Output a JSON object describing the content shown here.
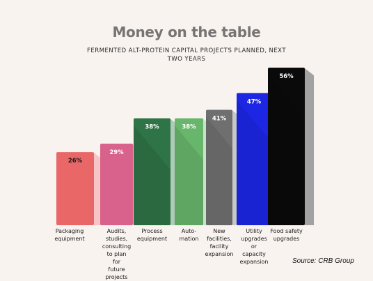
{
  "chart_data": {
    "type": "bar",
    "title": "Money on the table",
    "subtitle": "FERMENTED ALT-PROTEIN CAPITAL PROJECTS PLANNED, NEXT TWO YEARS",
    "categories": [
      "Packaging equipment",
      "Audits, studies, consulting to plan for future projects",
      "Process equipment",
      "Automation",
      "New facilities, facility expansion",
      "Utility upgrades or capacity expansion",
      "Food safety upgrades"
    ],
    "category_lines": [
      [
        "Packaging",
        "equipment"
      ],
      [
        "Audits,",
        "studies,",
        "consulting",
        "to plan",
        "for",
        "future",
        "projects"
      ],
      [
        "Process",
        "equipment"
      ],
      [
        "Auto-",
        "mation"
      ],
      [
        "New",
        "facilities,",
        "facility",
        "expansion"
      ],
      [
        "Utility",
        "upgrades",
        "or",
        "capacity",
        "expansion"
      ],
      [
        "Food safety",
        "upgrades"
      ]
    ],
    "values": [
      26,
      29,
      38,
      38,
      41,
      47,
      56
    ],
    "value_labels": [
      "26%",
      "29%",
      "38%",
      "38%",
      "41%",
      "47%",
      "56%"
    ],
    "colors": [
      "#ea6767",
      "#d8628b",
      "#2f7446",
      "#68b56c",
      "#6f6f6f",
      "#1d27e3",
      "#0a0a0a"
    ],
    "label_colors": [
      "#1a1a1a",
      "#ffffff",
      "#ffffff",
      "#ffffff",
      "#ffffff",
      "#ffffff",
      "#ffffff"
    ],
    "ylim": [
      0,
      56
    ],
    "grid": false,
    "legend": "none",
    "source": "Source: CRB Group"
  }
}
